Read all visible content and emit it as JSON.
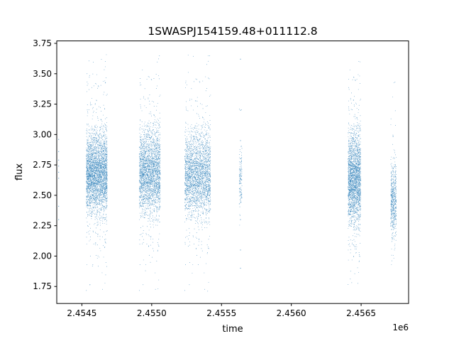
{
  "chart_data": {
    "type": "scatter",
    "title": "1SWASPJ154159.48+011112.8",
    "xlabel": "time",
    "ylabel": "flux",
    "x_offset_label": "1e6",
    "xlim": [
      2454320,
      2456840
    ],
    "ylim": [
      1.61,
      3.77
    ],
    "x_ticks": [
      {
        "value": 2454500,
        "label": "2.4545"
      },
      {
        "value": 2455000,
        "label": "2.4550"
      },
      {
        "value": 2455500,
        "label": "2.4555"
      },
      {
        "value": 2456000,
        "label": "2.4560"
      },
      {
        "value": 2456500,
        "label": "2.4565"
      }
    ],
    "y_ticks": [
      {
        "value": 1.75,
        "label": "1.75"
      },
      {
        "value": 2.0,
        "label": "2.00"
      },
      {
        "value": 2.25,
        "label": "2.25"
      },
      {
        "value": 2.5,
        "label": "2.50"
      },
      {
        "value": 2.75,
        "label": "2.75"
      },
      {
        "value": 3.0,
        "label": "3.00"
      },
      {
        "value": 3.25,
        "label": "3.25"
      },
      {
        "value": 3.5,
        "label": "3.50"
      },
      {
        "value": 3.75,
        "label": "3.75"
      }
    ],
    "grid": false,
    "marker_color": "#1f77b4",
    "series": [
      {
        "x": [
          2454334,
          2454334,
          2454334,
          2454334,
          2454334,
          2454334,
          2454334,
          2454334
        ],
        "y": [
          2.96,
          2.86,
          2.79,
          2.74,
          2.69,
          2.64,
          2.41,
          2.3
        ]
      },
      {
        "x": [
          2454540,
          2454548,
          2454556,
          2454563,
          2454570,
          2454578,
          2454585,
          2454592,
          2454600,
          2454610,
          2454620,
          2454630,
          2454640,
          2454650,
          2454660,
          2454670
        ],
        "y": [
          2.72,
          2.68,
          2.75,
          2.62,
          2.7,
          2.66,
          2.71,
          2.69,
          2.64,
          2.73,
          2.7,
          2.67,
          2.72,
          2.68,
          2.7,
          2.66
        ]
      },
      {
        "x": [
          2454920,
          2454935,
          2454950,
          2454965,
          2454980,
          2454995,
          2455010,
          2455025,
          2455040
        ],
        "y": [
          2.7,
          2.66,
          2.73,
          2.68,
          2.71,
          2.64,
          2.69,
          2.72,
          2.67
        ]
      },
      {
        "x": [
          2455250,
          2455270,
          2455290,
          2455310,
          2455330,
          2455350,
          2455370,
          2455390,
          2455410
        ],
        "y": [
          2.68,
          2.72,
          2.65,
          2.7,
          2.67,
          2.71,
          2.66,
          2.69,
          2.64
        ]
      },
      {
        "x": [
          2455636,
          2455636,
          2455636,
          2455636,
          2455636,
          2455636,
          2455636,
          2455636,
          2455636,
          2455636
        ],
        "y": [
          3.62,
          3.2,
          2.95,
          2.8,
          2.7,
          2.6,
          2.5,
          2.3,
          2.05,
          1.9
        ]
      },
      {
        "x": [
          2456420,
          2456435,
          2456450,
          2456465,
          2456480
        ],
        "y": [
          2.7,
          2.66,
          2.72,
          2.64,
          2.68
        ]
      },
      {
        "x": [
          2456720,
          2456725,
          2456730,
          2456735,
          2456740
        ],
        "y": [
          2.45,
          2.48,
          2.4,
          2.52,
          2.44
        ]
      }
    ],
    "clusters": [
      {
        "x_min": 2454530,
        "x_max": 2454680,
        "y_center": 2.68,
        "y_spread": 0.16,
        "y_min": 1.71,
        "y_max": 3.67,
        "density": 2.2
      },
      {
        "x_min": 2454910,
        "x_max": 2455060,
        "y_center": 2.69,
        "y_spread": 0.17,
        "y_min": 1.71,
        "y_max": 3.66,
        "density": 3.0
      },
      {
        "x_min": 2455235,
        "x_max": 2455420,
        "y_center": 2.67,
        "y_spread": 0.17,
        "y_min": 1.71,
        "y_max": 3.66,
        "density": 2.6
      },
      {
        "x_min": 2455625,
        "x_max": 2455645,
        "y_center": 2.62,
        "y_spread": 0.14,
        "y_min": 2.1,
        "y_max": 3.3,
        "density": 0.6
      },
      {
        "x_min": 2456405,
        "x_max": 2456495,
        "y_center": 2.64,
        "y_spread": 0.18,
        "y_min": 1.76,
        "y_max": 3.61,
        "density": 2.4
      },
      {
        "x_min": 2456710,
        "x_max": 2456750,
        "y_center": 2.45,
        "y_spread": 0.15,
        "y_min": 1.72,
        "y_max": 3.61,
        "density": 1.3
      }
    ]
  }
}
